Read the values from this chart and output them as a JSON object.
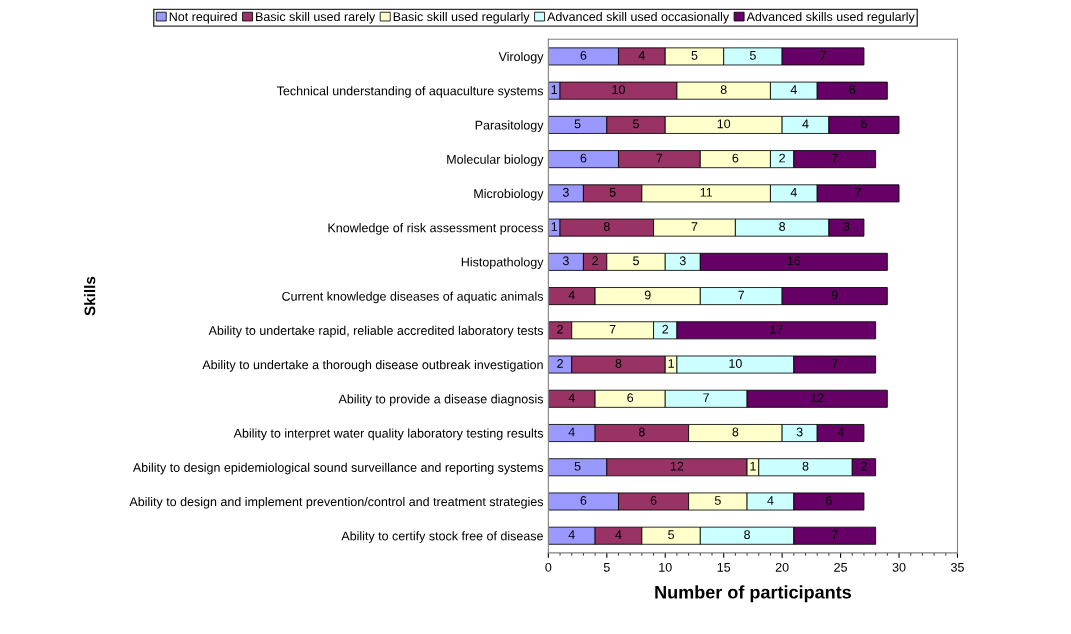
{
  "chart_data": {
    "type": "bar",
    "orientation": "horizontal",
    "stacked": true,
    "xlabel": "Number of participants",
    "ylabel": "Skills",
    "categories": [
      "Virology",
      "Technical understanding of aquaculture systems",
      "Parasitology",
      "Molecular biology",
      "Microbiology",
      "Knowledge of risk assessment process",
      "Histopathology",
      "Current knowledge diseases of aquatic animals",
      "Ability to undertake rapid, reliable accredited laboratory tests",
      "Ability to undertake a thorough disease outbreak investigation",
      "Ability to provide a disease diagnosis",
      "Ability to interpret water quality laboratory testing results",
      "Ability to design epidemiological sound surveillance and reporting systems",
      "Ability to design and implement prevention/control and treatment strategies",
      "Ability to certify stock free of disease"
    ],
    "series": [
      {
        "name": "Not required",
        "color": "#9999ff",
        "values": [
          6,
          1,
          5,
          6,
          3,
          1,
          3,
          null,
          null,
          2,
          null,
          4,
          5,
          6,
          4
        ]
      },
      {
        "name": "Basic skill used rarely",
        "color": "#993366",
        "values": [
          4,
          10,
          5,
          7,
          5,
          8,
          2,
          4,
          2,
          8,
          4,
          8,
          12,
          6,
          4
        ]
      },
      {
        "name": "Basic skill used regularly",
        "color": "#ffffcc",
        "values": [
          5,
          8,
          10,
          6,
          11,
          7,
          5,
          9,
          7,
          1,
          6,
          8,
          1,
          5,
          5
        ]
      },
      {
        "name": "Advanced skill used occasionally",
        "color": "#ccffff",
        "values": [
          5,
          4,
          4,
          2,
          4,
          8,
          3,
          7,
          2,
          10,
          7,
          3,
          8,
          4,
          8
        ]
      },
      {
        "name": "Advanced skills used regularly",
        "color": "#660066",
        "values": [
          7,
          6,
          6,
          7,
          7,
          3,
          16,
          9,
          17,
          7,
          12,
          4,
          2,
          6,
          7
        ]
      }
    ],
    "xlim": [
      0,
      35
    ],
    "xticks": [
      0,
      5,
      10,
      15,
      20,
      25,
      30,
      35
    ],
    "data_labels": true,
    "legend": "top",
    "grid": false
  }
}
